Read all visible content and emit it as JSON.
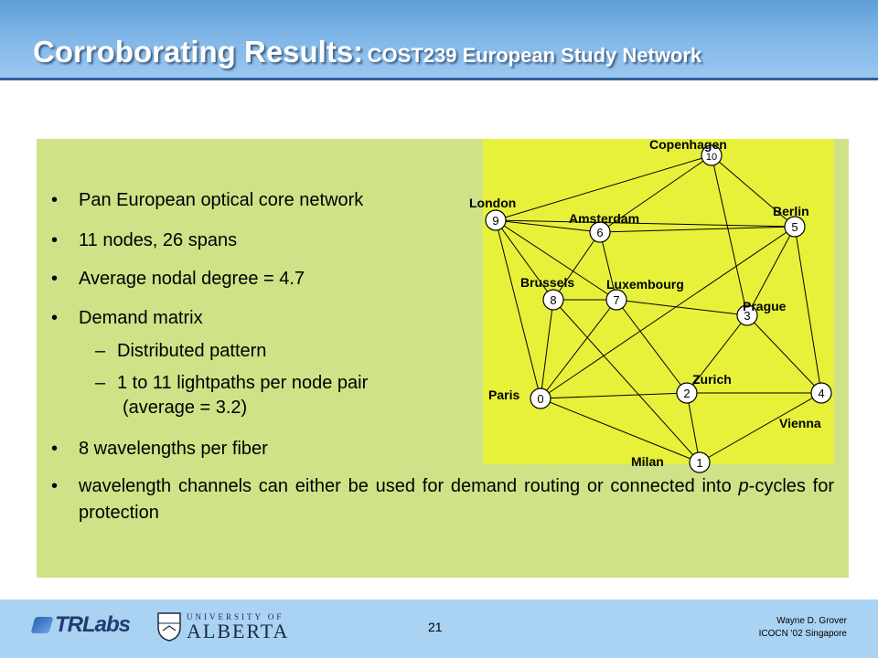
{
  "slide": {
    "title_main": "Corroborating Results:",
    "title_sub": "COST239 European Study Network",
    "bullets": [
      "Pan European optical core network",
      "11 nodes, 26 spans",
      "Average nodal degree = 4.7",
      "Demand matrix"
    ],
    "sub_bullets": [
      "Distributed pattern",
      "1 to 11 lightpaths per node pair"
    ],
    "sub_bullet_cont": "(average = 3.2)",
    "bullet_wavelengths": "8 wavelengths per fiber",
    "bullet_last": "wavelength channels can either be used for demand routing or connected into",
    "bullet_last_italic": "p",
    "bullet_last_rest": "-cycles for protection"
  },
  "network": {
    "nodes": [
      {
        "id": "0",
        "city": "Paris"
      },
      {
        "id": "1",
        "city": "Milan"
      },
      {
        "id": "2",
        "city": "Zurich"
      },
      {
        "id": "3",
        "city": "Prague"
      },
      {
        "id": "4",
        "city": "Vienna"
      },
      {
        "id": "5",
        "city": "Berlin"
      },
      {
        "id": "6",
        "city": "Amsterdam"
      },
      {
        "id": "7",
        "city": "Luxembourg"
      },
      {
        "id": "8",
        "city": "Brussels"
      },
      {
        "id": "9",
        "city": "London"
      },
      {
        "id": "10",
        "city": "Copenhagen"
      }
    ],
    "colors": {
      "box": "#e7f13a",
      "node_fill": "#ffffff",
      "edge": "#000000"
    }
  },
  "footer": {
    "page_number": "21",
    "author": "Wayne D. Grover",
    "event": "ICOCN '02 Singapore",
    "logo_tr": "TRLabs",
    "logo_ua_top": "UNIVERSITY OF",
    "logo_ua_bottom": "ALBERTA"
  }
}
